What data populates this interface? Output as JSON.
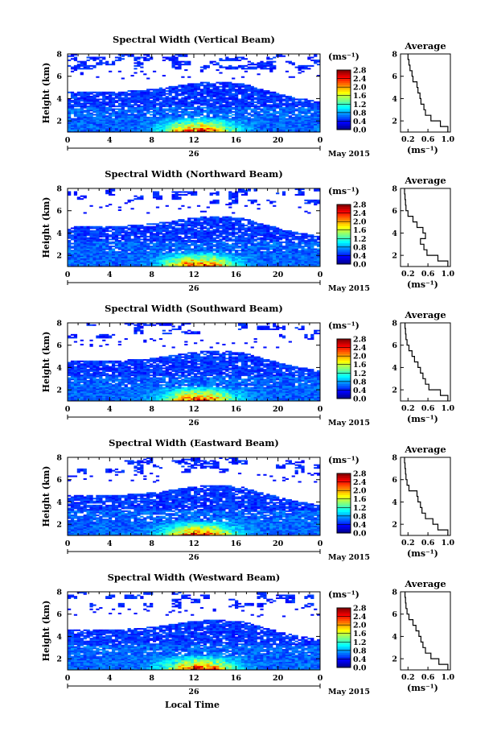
{
  "figure": {
    "date_label": "May 2015",
    "xlabel_bottom": "Local Time",
    "day_label": "26",
    "height_label": "Height (km)",
    "units": "(ms⁻¹)",
    "average_title": "Average"
  },
  "chart_data": [
    {
      "type": "heatmap",
      "title": "Spectral Width (Vertical Beam)",
      "xlabel": "",
      "ylabel": "Height (km)",
      "xlim": [
        0,
        24
      ],
      "ylim": [
        1,
        8
      ],
      "x_ticks": [
        "0",
        "4",
        "8",
        "12",
        "16",
        "20",
        "0"
      ],
      "y_ticks": [
        "2",
        "4",
        "6",
        "8"
      ],
      "colorbar": {
        "label": "(ms⁻¹)",
        "range": [
          0,
          2.8
        ],
        "ticks": [
          "0.0",
          "0.4",
          "0.8",
          "1.2",
          "1.6",
          "2.0",
          "2.4",
          "2.8"
        ]
      },
      "average_profile": {
        "title": "Average",
        "xlabel": "(ms⁻¹)",
        "x_ticks": [
          "0.2",
          "0.6",
          "1.0"
        ],
        "y_ticks": [
          "2",
          "4",
          "6",
          "8"
        ],
        "height_km": [
          1.0,
          1.5,
          2.0,
          2.5,
          3.0,
          3.5,
          4.0,
          4.5,
          5.0,
          5.5,
          6.0,
          6.5,
          7.0,
          7.5
        ],
        "width_ms": [
          1.0,
          0.85,
          0.66,
          0.55,
          0.52,
          0.46,
          0.44,
          0.4,
          0.38,
          0.3,
          0.28,
          0.24,
          0.22,
          0.2
        ]
      }
    },
    {
      "type": "heatmap",
      "title": "Spectral Width (Northward Beam)",
      "xlabel": "",
      "ylabel": "Height (km)",
      "xlim": [
        0,
        24
      ],
      "ylim": [
        1,
        8
      ],
      "x_ticks": [
        "0",
        "4",
        "8",
        "12",
        "16",
        "20",
        "0"
      ],
      "y_ticks": [
        "2",
        "4",
        "6",
        "8"
      ],
      "colorbar": {
        "label": "(ms⁻¹)",
        "range": [
          0,
          2.8
        ],
        "ticks": [
          "0.0",
          "0.4",
          "0.8",
          "1.2",
          "1.6",
          "2.0",
          "2.4",
          "2.8"
        ]
      },
      "average_profile": {
        "title": "Average",
        "xlabel": "(ms⁻¹)",
        "x_ticks": [
          "0.2",
          "0.6",
          "1.0"
        ],
        "y_ticks": [
          "2",
          "4",
          "6",
          "8"
        ],
        "height_km": [
          1.0,
          1.5,
          2.0,
          2.5,
          3.0,
          3.5,
          4.0,
          4.5,
          5.0,
          5.5,
          6.0,
          6.5,
          7.0,
          7.5
        ],
        "width_ms": [
          1.0,
          0.8,
          0.58,
          0.52,
          0.45,
          0.55,
          0.5,
          0.38,
          0.3,
          0.2,
          0.16,
          0.15,
          0.14,
          0.13
        ]
      }
    },
    {
      "type": "heatmap",
      "title": "Spectral Width (Southward Beam)",
      "xlabel": "",
      "ylabel": "Height (km)",
      "xlim": [
        0,
        24
      ],
      "ylim": [
        1,
        8
      ],
      "x_ticks": [
        "0",
        "4",
        "8",
        "12",
        "16",
        "20",
        "0"
      ],
      "y_ticks": [
        "2",
        "4",
        "6",
        "8"
      ],
      "colorbar": {
        "label": "(ms⁻¹)",
        "range": [
          0,
          2.8
        ],
        "ticks": [
          "0.0",
          "0.4",
          "0.8",
          "1.2",
          "1.6",
          "2.0",
          "2.4",
          "2.8"
        ]
      },
      "average_profile": {
        "title": "Average",
        "xlabel": "(ms⁻¹)",
        "x_ticks": [
          "0.2",
          "0.6",
          "1.0"
        ],
        "y_ticks": [
          "2",
          "4",
          "6",
          "8"
        ],
        "height_km": [
          1.0,
          1.5,
          2.0,
          2.5,
          3.0,
          3.5,
          4.0,
          4.5,
          5.0,
          5.5,
          6.0,
          6.5,
          7.0,
          7.5
        ],
        "width_ms": [
          1.0,
          0.85,
          0.62,
          0.55,
          0.5,
          0.45,
          0.4,
          0.33,
          0.28,
          0.22,
          0.18,
          0.16,
          0.15,
          0.14
        ]
      }
    },
    {
      "type": "heatmap",
      "title": "Spectral Width (Eastward Beam)",
      "xlabel": "",
      "ylabel": "Height (km)",
      "xlim": [
        0,
        24
      ],
      "ylim": [
        1,
        8
      ],
      "x_ticks": [
        "0",
        "4",
        "8",
        "12",
        "16",
        "20",
        "0"
      ],
      "y_ticks": [
        "2",
        "4",
        "6",
        "8"
      ],
      "colorbar": {
        "label": "(ms⁻¹)",
        "range": [
          0,
          2.8
        ],
        "ticks": [
          "0.0",
          "0.4",
          "0.8",
          "1.2",
          "1.6",
          "2.0",
          "2.4",
          "2.8"
        ]
      },
      "average_profile": {
        "title": "Average",
        "xlabel": "(ms⁻¹)",
        "x_ticks": [
          "0.2",
          "0.6",
          "1.0"
        ],
        "y_ticks": [
          "2",
          "4",
          "6",
          "8"
        ],
        "height_km": [
          1.0,
          1.5,
          2.0,
          2.5,
          3.0,
          3.5,
          4.0,
          4.5,
          5.0,
          5.5,
          6.0,
          6.5,
          7.0,
          7.5
        ],
        "width_ms": [
          1.0,
          0.8,
          0.7,
          0.55,
          0.48,
          0.45,
          0.4,
          0.38,
          0.22,
          0.18,
          0.16,
          0.15,
          0.14,
          0.13
        ]
      }
    },
    {
      "type": "heatmap",
      "title": "Spectral Width (Westward Beam)",
      "xlabel": "Local Time",
      "ylabel": "Height (km)",
      "xlim": [
        0,
        24
      ],
      "ylim": [
        1,
        8
      ],
      "x_ticks": [
        "0",
        "4",
        "8",
        "12",
        "16",
        "20",
        "0"
      ],
      "y_ticks": [
        "2",
        "4",
        "6",
        "8"
      ],
      "colorbar": {
        "label": "(ms⁻¹)",
        "range": [
          0,
          2.8
        ],
        "ticks": [
          "0.0",
          "0.4",
          "0.8",
          "1.2",
          "1.6",
          "2.0",
          "2.4",
          "2.8"
        ]
      },
      "average_profile": {
        "title": "Average",
        "xlabel": "(ms⁻¹)",
        "x_ticks": [
          "0.2",
          "0.6",
          "1.0"
        ],
        "y_ticks": [
          "2",
          "4",
          "6",
          "8"
        ],
        "height_km": [
          1.0,
          1.5,
          2.0,
          2.5,
          3.0,
          3.5,
          4.0,
          4.5,
          5.0,
          5.5,
          6.0,
          6.5,
          7.0,
          7.5
        ],
        "width_ms": [
          1.0,
          0.82,
          0.66,
          0.55,
          0.5,
          0.46,
          0.42,
          0.36,
          0.3,
          0.22,
          0.18,
          0.16,
          0.15,
          0.14
        ]
      }
    }
  ]
}
